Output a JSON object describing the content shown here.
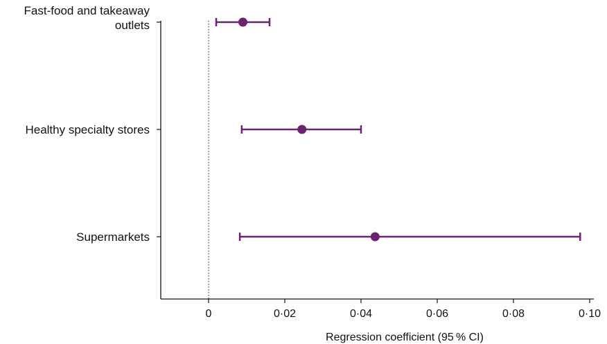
{
  "chart_data": {
    "type": "forest",
    "xlabel": "Regression coefficient (95 % CI)",
    "xlim": [
      -0.0125,
      0.1
    ],
    "xticks": [
      0,
      0.02,
      0.04,
      0.06,
      0.08,
      0.1
    ],
    "xtick_labels": [
      "0",
      "0·02",
      "0·04",
      "0·06",
      "0·08",
      "0·10"
    ],
    "reference_line": 0,
    "colors": {
      "series": "#6b2270",
      "axis": "#111111"
    },
    "categories": [
      {
        "label_lines": [
          "Fast-food and takeaway",
          "outlets"
        ],
        "estimate": 0.009,
        "ci_low": 0.002,
        "ci_high": 0.016
      },
      {
        "label_lines": [
          "Healthy specialty stores"
        ],
        "estimate": 0.0245,
        "ci_low": 0.0087,
        "ci_high": 0.04
      },
      {
        "label_lines": [
          "Supermarkets"
        ],
        "estimate": 0.0437,
        "ci_low": 0.0082,
        "ci_high": 0.0975
      }
    ]
  }
}
